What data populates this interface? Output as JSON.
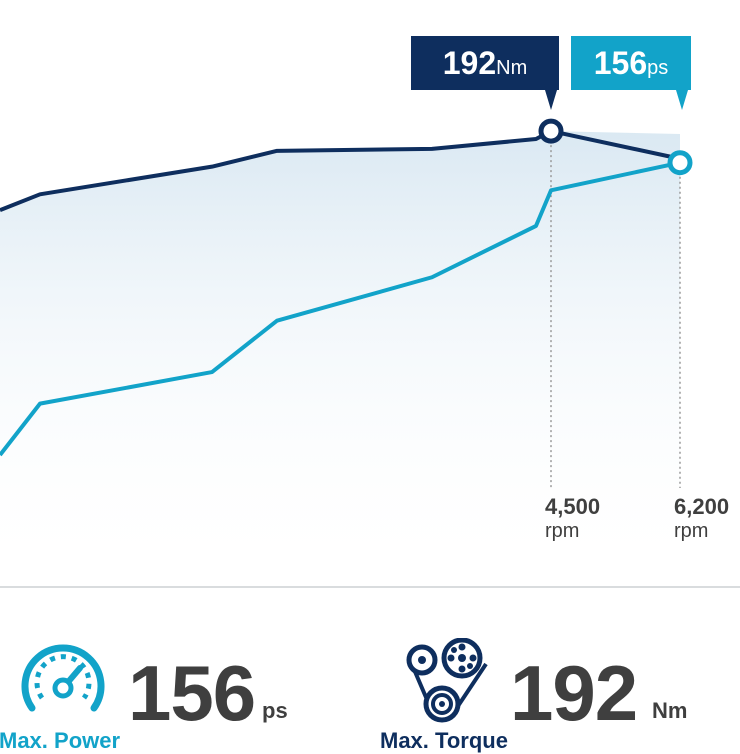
{
  "chart_data": {
    "type": "line",
    "xlabel": "",
    "ylabel": "",
    "x_ticks": [
      {
        "value": 4500,
        "label": "4,500",
        "unit": "rpm"
      },
      {
        "value": 6200,
        "label": "6,200",
        "unit": "rpm"
      }
    ],
    "series": [
      {
        "key": "torque",
        "color": "#0e2e5e",
        "points": [
          [
            0,
            62
          ],
          [
            1,
            66
          ],
          [
            2,
            73
          ],
          [
            3,
            77
          ],
          [
            4,
            77.5
          ],
          [
            5,
            80
          ],
          [
            6,
            82
          ],
          [
            7,
            75
          ]
        ],
        "peak_index": 6,
        "callout": {
          "value": "192",
          "unit": "Nm"
        }
      },
      {
        "key": "power",
        "color": "#12a3c9",
        "points": [
          [
            0,
            0
          ],
          [
            1,
            13
          ],
          [
            2,
            21
          ],
          [
            3,
            34
          ],
          [
            4,
            45
          ],
          [
            5,
            58
          ],
          [
            6,
            67
          ],
          [
            7,
            74
          ]
        ],
        "peak_index": 7,
        "callout": {
          "value": "156",
          "unit": "ps"
        }
      }
    ]
  },
  "stats": {
    "power": {
      "value": "156",
      "unit": "ps",
      "label": "Max. Power",
      "icon": "speedometer-icon",
      "color": "#12a3c9"
    },
    "torque": {
      "value": "192",
      "unit": "Nm",
      "label": "Max. Torque",
      "icon": "belt-pulley-icon",
      "color": "#0e2e5e"
    }
  }
}
